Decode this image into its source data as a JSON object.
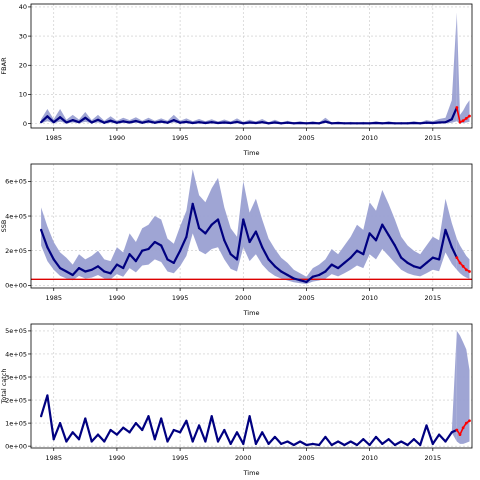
{
  "chart_data": [
    {
      "type": "line",
      "id": "fbar",
      "ylabel": "FBAR",
      "xlabel": "Time",
      "xlim": [
        1983.2,
        2018.1
      ],
      "ylim": [
        -1.5,
        41
      ],
      "xticks": [
        1985,
        1990,
        1995,
        2000,
        2005,
        2010,
        2015
      ],
      "xtick_labels": [
        "1985",
        "1990",
        "1995",
        "2000",
        "2005",
        "2010",
        "2015"
      ],
      "yticks": [
        0,
        10,
        20,
        30,
        40
      ],
      "ytick_labels": [
        "0",
        "10",
        "20",
        "30",
        "40"
      ],
      "grid": true,
      "series": [
        {
          "color": "#000080",
          "x": [
            1984.0,
            1984.5,
            1985.0,
            1985.5,
            1986.0,
            1986.5,
            1987.0,
            1987.5,
            1988.0,
            1988.5,
            1989.0,
            1989.5,
            1990.0,
            1990.5,
            1991.0,
            1991.5,
            1992.0,
            1992.5,
            1993.0,
            1993.5,
            1994.0,
            1994.5,
            1995.0,
            1995.5,
            1996.0,
            1996.5,
            1997.0,
            1997.5,
            1998.0,
            1998.5,
            1999.0,
            1999.5,
            2000.0,
            2000.5,
            2001.0,
            2001.5,
            2002.0,
            2002.5,
            2003.0,
            2003.5,
            2004.0,
            2004.5,
            2005.0,
            2005.5,
            2006.0,
            2006.5,
            2007.0,
            2007.5,
            2008.0,
            2008.5,
            2009.0,
            2009.5,
            2010.0,
            2010.5,
            2011.0,
            2011.5,
            2012.0,
            2012.5,
            2013.0,
            2013.5,
            2014.0,
            2014.5,
            2015.0,
            2015.5,
            2016.0,
            2016.5,
            2016.9
          ],
          "y": [
            0.5,
            2.5,
            0.5,
            2.2,
            0.4,
            1.2,
            0.5,
            2.0,
            0.4,
            1.3,
            0.3,
            1.0,
            0.3,
            0.8,
            0.4,
            0.9,
            0.3,
            0.8,
            0.3,
            0.7,
            0.3,
            1.2,
            0.3,
            0.6,
            0.2,
            0.5,
            0.2,
            0.5,
            0.2,
            0.4,
            0.2,
            0.6,
            0.1,
            0.4,
            0.2,
            0.5,
            0.1,
            0.4,
            0.1,
            0.3,
            0.1,
            0.2,
            0.1,
            0.2,
            0.1,
            0.7,
            0.1,
            0.2,
            0.1,
            0.1,
            0.1,
            0.1,
            0.1,
            0.2,
            0.1,
            0.2,
            0.1,
            0.1,
            0.1,
            0.2,
            0.1,
            0.3,
            0.2,
            0.4,
            0.5,
            1.5,
            5.5
          ],
          "upper": [
            1.5,
            5.0,
            1.5,
            5.0,
            1.3,
            3.0,
            1.4,
            4.0,
            1.2,
            3.0,
            1.0,
            2.5,
            1.0,
            2.0,
            1.2,
            2.2,
            1.0,
            2.0,
            1.0,
            1.8,
            1.0,
            3.0,
            1.0,
            1.8,
            0.8,
            1.6,
            0.8,
            1.5,
            0.7,
            1.4,
            0.7,
            1.8,
            0.6,
            1.3,
            0.7,
            1.6,
            0.5,
            1.3,
            0.5,
            1.0,
            0.5,
            0.8,
            0.4,
            0.8,
            0.4,
            2.0,
            0.4,
            0.7,
            0.4,
            0.6,
            0.4,
            0.6,
            0.4,
            0.8,
            0.4,
            0.8,
            0.4,
            0.5,
            0.5,
            0.8,
            0.5,
            1.2,
            0.8,
            1.6,
            2.0,
            8.0,
            38.0
          ],
          "lower": [
            0.1,
            0.8,
            0.1,
            0.7,
            0.1,
            0.4,
            0.1,
            0.6,
            0.1,
            0.4,
            0.0,
            0.3,
            0.0,
            0.2,
            0.1,
            0.3,
            0.0,
            0.2,
            0.0,
            0.2,
            0.0,
            0.4,
            0.0,
            0.2,
            0.0,
            0.1,
            0.0,
            0.1,
            0.0,
            0.1,
            0.0,
            0.2,
            0.0,
            0.1,
            0.0,
            0.1,
            0.0,
            0.1,
            0.0,
            0.1,
            0.0,
            0.0,
            0.0,
            0.0,
            0.0,
            0.2,
            0.0,
            0.0,
            0.0,
            0.0,
            0.0,
            0.0,
            0.0,
            0.0,
            0.0,
            0.0,
            0.0,
            0.0,
            0.0,
            0.0,
            0.0,
            0.1,
            0.0,
            0.1,
            0.1,
            0.3,
            0.8
          ]
        },
        {
          "color": "#ff0000",
          "x": [
            2016.9,
            2017.15,
            2017.4,
            2017.65,
            2017.9
          ],
          "y": [
            5.5,
            0.5,
            1.0,
            1.8,
            2.6
          ],
          "upper": [
            38.0,
            3.0,
            4.5,
            6.5,
            8.0
          ],
          "lower": [
            0.8,
            0.1,
            0.2,
            0.4,
            0.6
          ]
        }
      ],
      "band_color": "#9aa0d2"
    },
    {
      "type": "line",
      "id": "ssb",
      "ylabel": "SSB",
      "xlabel": "Time",
      "xlim": [
        1983.2,
        2018.1
      ],
      "ylim": [
        -15000,
        700000
      ],
      "xticks": [
        1985,
        1990,
        1995,
        2000,
        2005,
        2010,
        2015
      ],
      "xtick_labels": [
        "1985",
        "1990",
        "1995",
        "2000",
        "2005",
        "2010",
        "2015"
      ],
      "yticks": [
        0,
        200000,
        400000,
        600000
      ],
      "ytick_labels": [
        "0e+00",
        "2e+05",
        "4e+05",
        "6e+05"
      ],
      "grid": true,
      "reference_line": {
        "y": 35000,
        "color": "#dd0000"
      },
      "series": [
        {
          "color": "#000080",
          "x": [
            1984.0,
            1984.5,
            1985.0,
            1985.5,
            1986.0,
            1986.5,
            1987.0,
            1987.5,
            1988.0,
            1988.5,
            1989.0,
            1989.5,
            1990.0,
            1990.5,
            1991.0,
            1991.5,
            1992.0,
            1992.5,
            1993.0,
            1993.5,
            1994.0,
            1994.5,
            1995.0,
            1995.5,
            1996.0,
            1996.5,
            1997.0,
            1997.5,
            1998.0,
            1998.5,
            1999.0,
            1999.5,
            2000.0,
            2000.5,
            2001.0,
            2001.5,
            2002.0,
            2002.5,
            2003.0,
            2003.5,
            2004.0,
            2004.5,
            2005.0,
            2005.5,
            2006.0,
            2006.5,
            2007.0,
            2007.5,
            2008.0,
            2008.5,
            2009.0,
            2009.5,
            2010.0,
            2010.5,
            2011.0,
            2011.5,
            2012.0,
            2012.5,
            2013.0,
            2013.5,
            2014.0,
            2014.5,
            2015.0,
            2015.5,
            2016.0,
            2016.5,
            2016.9
          ],
          "y": [
            320000,
            220000,
            150000,
            100000,
            80000,
            60000,
            100000,
            80000,
            90000,
            110000,
            80000,
            70000,
            120000,
            100000,
            180000,
            140000,
            200000,
            210000,
            250000,
            230000,
            150000,
            130000,
            200000,
            280000,
            470000,
            330000,
            300000,
            350000,
            380000,
            260000,
            180000,
            150000,
            380000,
            250000,
            310000,
            220000,
            150000,
            110000,
            80000,
            60000,
            40000,
            30000,
            20000,
            50000,
            60000,
            80000,
            120000,
            100000,
            130000,
            160000,
            200000,
            180000,
            300000,
            260000,
            350000,
            290000,
            230000,
            160000,
            130000,
            110000,
            100000,
            130000,
            160000,
            150000,
            320000,
            220000,
            160000
          ],
          "upper": [
            450000,
            340000,
            250000,
            190000,
            160000,
            120000,
            180000,
            150000,
            170000,
            200000,
            150000,
            140000,
            220000,
            190000,
            300000,
            250000,
            330000,
            350000,
            400000,
            380000,
            270000,
            240000,
            340000,
            430000,
            670000,
            520000,
            480000,
            560000,
            620000,
            450000,
            330000,
            280000,
            600000,
            420000,
            500000,
            380000,
            270000,
            210000,
            160000,
            130000,
            90000,
            70000,
            50000,
            100000,
            120000,
            150000,
            210000,
            180000,
            230000,
            280000,
            350000,
            320000,
            480000,
            430000,
            550000,
            470000,
            380000,
            280000,
            230000,
            200000,
            180000,
            230000,
            280000,
            260000,
            500000,
            360000,
            270000
          ],
          "lower": [
            230000,
            140000,
            90000,
            55000,
            40000,
            30000,
            55000,
            40000,
            45000,
            60000,
            40000,
            35000,
            65000,
            50000,
            100000,
            75000,
            115000,
            120000,
            150000,
            135000,
            80000,
            70000,
            110000,
            170000,
            300000,
            200000,
            180000,
            210000,
            220000,
            150000,
            95000,
            80000,
            220000,
            140000,
            180000,
            120000,
            80000,
            55000,
            40000,
            28000,
            18000,
            12000,
            8000,
            22000,
            28000,
            38000,
            65000,
            52000,
            70000,
            90000,
            115000,
            100000,
            180000,
            150000,
            210000,
            170000,
            130000,
            90000,
            70000,
            58000,
            52000,
            70000,
            90000,
            82000,
            190000,
            125000,
            90000
          ]
        },
        {
          "color": "#ff0000",
          "x": [
            2016.9,
            2017.15,
            2017.4,
            2017.65,
            2017.9
          ],
          "y": [
            160000,
            130000,
            110000,
            90000,
            80000
          ],
          "upper": [
            270000,
            230000,
            200000,
            170000,
            150000
          ],
          "lower": [
            90000,
            70000,
            55000,
            45000,
            38000
          ]
        }
      ],
      "band_color": "#9aa0d2"
    },
    {
      "type": "line",
      "id": "catch",
      "ylabel": "Total catch",
      "xlabel": "Time",
      "xlim": [
        1983.2,
        2018.1
      ],
      "ylim": [
        -8000,
        530000
      ],
      "xticks": [
        1985,
        1990,
        1995,
        2000,
        2005,
        2010,
        2015
      ],
      "xtick_labels": [
        "1985",
        "1990",
        "1995",
        "2000",
        "2005",
        "2010",
        "2015"
      ],
      "yticks": [
        0,
        100000,
        200000,
        300000,
        400000,
        500000
      ],
      "ytick_labels": [
        "0e+00",
        "1e+05",
        "2e+05",
        "3e+05",
        "4e+05",
        "5e+05"
      ],
      "grid": true,
      "series": [
        {
          "color": "#000080",
          "x": [
            1984.0,
            1984.5,
            1985.0,
            1985.5,
            1986.0,
            1986.5,
            1987.0,
            1987.5,
            1988.0,
            1988.5,
            1989.0,
            1989.5,
            1990.0,
            1990.5,
            1991.0,
            1991.5,
            1992.0,
            1992.5,
            1993.0,
            1993.5,
            1994.0,
            1994.5,
            1995.0,
            1995.5,
            1996.0,
            1996.5,
            1997.0,
            1997.5,
            1998.0,
            1998.5,
            1999.0,
            1999.5,
            2000.0,
            2000.5,
            2001.0,
            2001.5,
            2002.0,
            2002.5,
            2003.0,
            2003.5,
            2004.0,
            2004.5,
            2005.0,
            2005.5,
            2006.0,
            2006.5,
            2007.0,
            2007.5,
            2008.0,
            2008.5,
            2009.0,
            2009.5,
            2010.0,
            2010.5,
            2011.0,
            2011.5,
            2012.0,
            2012.5,
            2013.0,
            2013.5,
            2014.0,
            2014.5,
            2015.0,
            2015.5,
            2016.0,
            2016.5,
            2016.9
          ],
          "y": [
            130000,
            220000,
            30000,
            100000,
            20000,
            60000,
            30000,
            120000,
            20000,
            50000,
            20000,
            70000,
            50000,
            80000,
            60000,
            100000,
            70000,
            130000,
            30000,
            120000,
            20000,
            70000,
            60000,
            110000,
            20000,
            90000,
            20000,
            130000,
            20000,
            70000,
            10000,
            60000,
            10000,
            130000,
            10000,
            60000,
            10000,
            40000,
            10000,
            20000,
            5000,
            20000,
            5000,
            10000,
            5000,
            40000,
            5000,
            20000,
            5000,
            20000,
            5000,
            30000,
            5000,
            40000,
            10000,
            30000,
            5000,
            20000,
            5000,
            30000,
            5000,
            90000,
            10000,
            50000,
            20000,
            60000,
            70000
          ],
          "upper": [
            135000,
            225000,
            32000,
            103000,
            22000,
            62000,
            32000,
            123000,
            22000,
            52000,
            22000,
            72000,
            52000,
            82000,
            62000,
            103000,
            72000,
            133000,
            32000,
            123000,
            22000,
            72000,
            62000,
            113000,
            22000,
            92000,
            22000,
            133000,
            22000,
            72000,
            12000,
            62000,
            12000,
            133000,
            12000,
            62000,
            12000,
            42000,
            12000,
            22000,
            6000,
            22000,
            6000,
            12000,
            6000,
            42000,
            6000,
            22000,
            6000,
            22000,
            6000,
            32000,
            6000,
            42000,
            12000,
            32000,
            6000,
            22000,
            6000,
            32000,
            6000,
            93000,
            12000,
            52000,
            22000,
            62000,
            500000
          ],
          "lower": [
            125000,
            215000,
            28000,
            97000,
            18000,
            58000,
            28000,
            117000,
            18000,
            48000,
            18000,
            68000,
            48000,
            78000,
            58000,
            97000,
            68000,
            127000,
            28000,
            117000,
            18000,
            68000,
            58000,
            107000,
            18000,
            88000,
            18000,
            127000,
            18000,
            68000,
            8000,
            58000,
            8000,
            127000,
            8000,
            58000,
            8000,
            38000,
            8000,
            18000,
            4000,
            18000,
            4000,
            8000,
            4000,
            38000,
            4000,
            18000,
            4000,
            18000,
            4000,
            28000,
            4000,
            38000,
            8000,
            28000,
            4000,
            18000,
            4000,
            28000,
            4000,
            87000,
            8000,
            48000,
            18000,
            58000,
            20000
          ]
        },
        {
          "color": "#ff0000",
          "x": [
            2016.9,
            2017.15,
            2017.4,
            2017.65,
            2017.9
          ],
          "y": [
            70000,
            50000,
            80000,
            100000,
            110000
          ],
          "upper": [
            500000,
            480000,
            450000,
            420000,
            330000
          ],
          "lower": [
            20000,
            10000,
            10000,
            15000,
            20000
          ]
        }
      ],
      "band_color": "#9aa0d2"
    }
  ]
}
